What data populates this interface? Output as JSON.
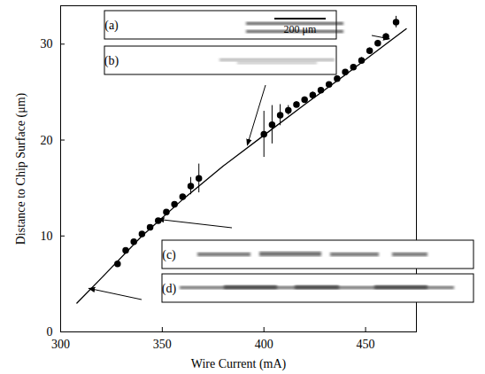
{
  "chart_data": {
    "type": "scatter",
    "x_label": "Wire Current (mA)",
    "y_label": "Distance to Chip Surface (μm)",
    "xlim": [
      300,
      475
    ],
    "ylim": [
      0,
      34
    ],
    "xticks": [
      300,
      350,
      400,
      450
    ],
    "yticks": [
      0,
      10,
      20,
      30
    ],
    "grid": false,
    "series": [
      {
        "type": "scatter",
        "marker": "circle",
        "color": "#000000",
        "x": [
          328,
          332,
          336,
          340,
          344,
          348,
          352,
          356,
          360,
          364,
          368,
          400,
          404,
          408,
          412,
          416,
          420,
          424,
          428,
          432,
          436,
          440,
          444,
          448,
          452,
          456,
          460,
          465
        ],
        "values": [
          7.1,
          8.5,
          9.4,
          10.2,
          10.9,
          11.6,
          12.5,
          13.3,
          14.1,
          15.2,
          16.0,
          20.6,
          21.6,
          22.6,
          23.1,
          23.7,
          24.2,
          24.7,
          25.2,
          25.8,
          26.4,
          27.1,
          27.6,
          28.3,
          29.3,
          30.1,
          30.8,
          32.3
        ],
        "errors": [
          0.3,
          0.2,
          0.2,
          0.2,
          0.2,
          0.2,
          0.2,
          0.2,
          0.2,
          0.9,
          1.5,
          2.4,
          2.0,
          1.1,
          0.5,
          0.3,
          0.3,
          0.3,
          0.2,
          0.2,
          0.2,
          0.2,
          0.2,
          0.3,
          0.3,
          0.3,
          0.3,
          0.6
        ]
      },
      {
        "type": "line",
        "line_style": "solid",
        "color": "#000000",
        "x": [
          308,
          320,
          340,
          360,
          380,
          400,
          420,
          440,
          460,
          470
        ],
        "values": [
          3.0,
          5.6,
          10.0,
          13.8,
          17.3,
          20.5,
          23.7,
          26.8,
          30.0,
          31.6
        ]
      }
    ],
    "annotations": [
      {
        "text": "(a)",
        "points_to": [
          462,
          30.5
        ],
        "scale_bar": "200 μm"
      },
      {
        "text": "(b)",
        "points_to": [
          392,
          19.4
        ]
      },
      {
        "text": "(c)",
        "points_to": [
          348,
          11.7
        ]
      },
      {
        "text": "(d)",
        "points_to": [
          314,
          4.5
        ]
      }
    ]
  }
}
